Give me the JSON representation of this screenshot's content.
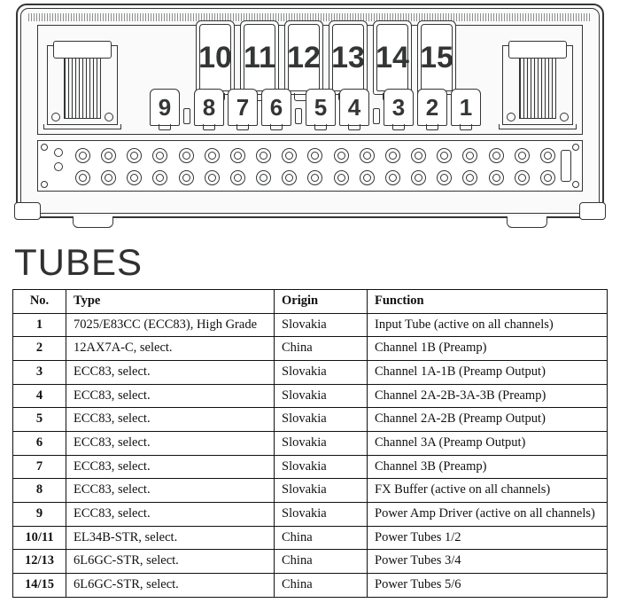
{
  "diagram": {
    "big_tube_labels": [
      "10",
      "11",
      "12",
      "13",
      "14",
      "15"
    ],
    "small_tube_labels": [
      "1",
      "2",
      "3",
      "4",
      "5",
      "6",
      "7",
      "8",
      "9"
    ],
    "colors": {
      "line": "#333634",
      "bg": "#fafafa"
    }
  },
  "heading": "TUBES",
  "table": {
    "columns": [
      "No.",
      "Type",
      "Origin",
      "Function"
    ],
    "rows": [
      [
        "1",
        "7025/E83CC (ECC83), High Grade",
        "Slovakia",
        "Input Tube (active on all channels)"
      ],
      [
        "2",
        "12AX7A-C, select.",
        "China",
        "Channel 1B (Preamp)"
      ],
      [
        "3",
        "ECC83, select.",
        "Slovakia",
        "Channel 1A-1B (Preamp Output)"
      ],
      [
        "4",
        "ECC83, select.",
        "Slovakia",
        "Channel 2A-2B-3A-3B (Preamp)"
      ],
      [
        "5",
        "ECC83, select.",
        "Slovakia",
        "Channel 2A-2B (Preamp Output)"
      ],
      [
        "6",
        "ECC83, select.",
        "Slovakia",
        "Channel 3A (Preamp Output)"
      ],
      [
        "7",
        "ECC83, select.",
        "Slovakia",
        "Channel 3B (Preamp)"
      ],
      [
        "8",
        "ECC83, select.",
        "Slovakia",
        "FX Buffer (active on all channels)"
      ],
      [
        "9",
        "ECC83, select.",
        "Slovakia",
        "Power Amp Driver (active on all channels)"
      ],
      [
        "10/11",
        "EL34B-STR, select.",
        "China",
        "Power Tubes 1/2"
      ],
      [
        "12/13",
        "6L6GC-STR, select.",
        "China",
        "Power Tubes 3/4"
      ],
      [
        "14/15",
        "6L6GC-STR, select.",
        "China",
        "Power Tubes 5/6"
      ]
    ]
  }
}
